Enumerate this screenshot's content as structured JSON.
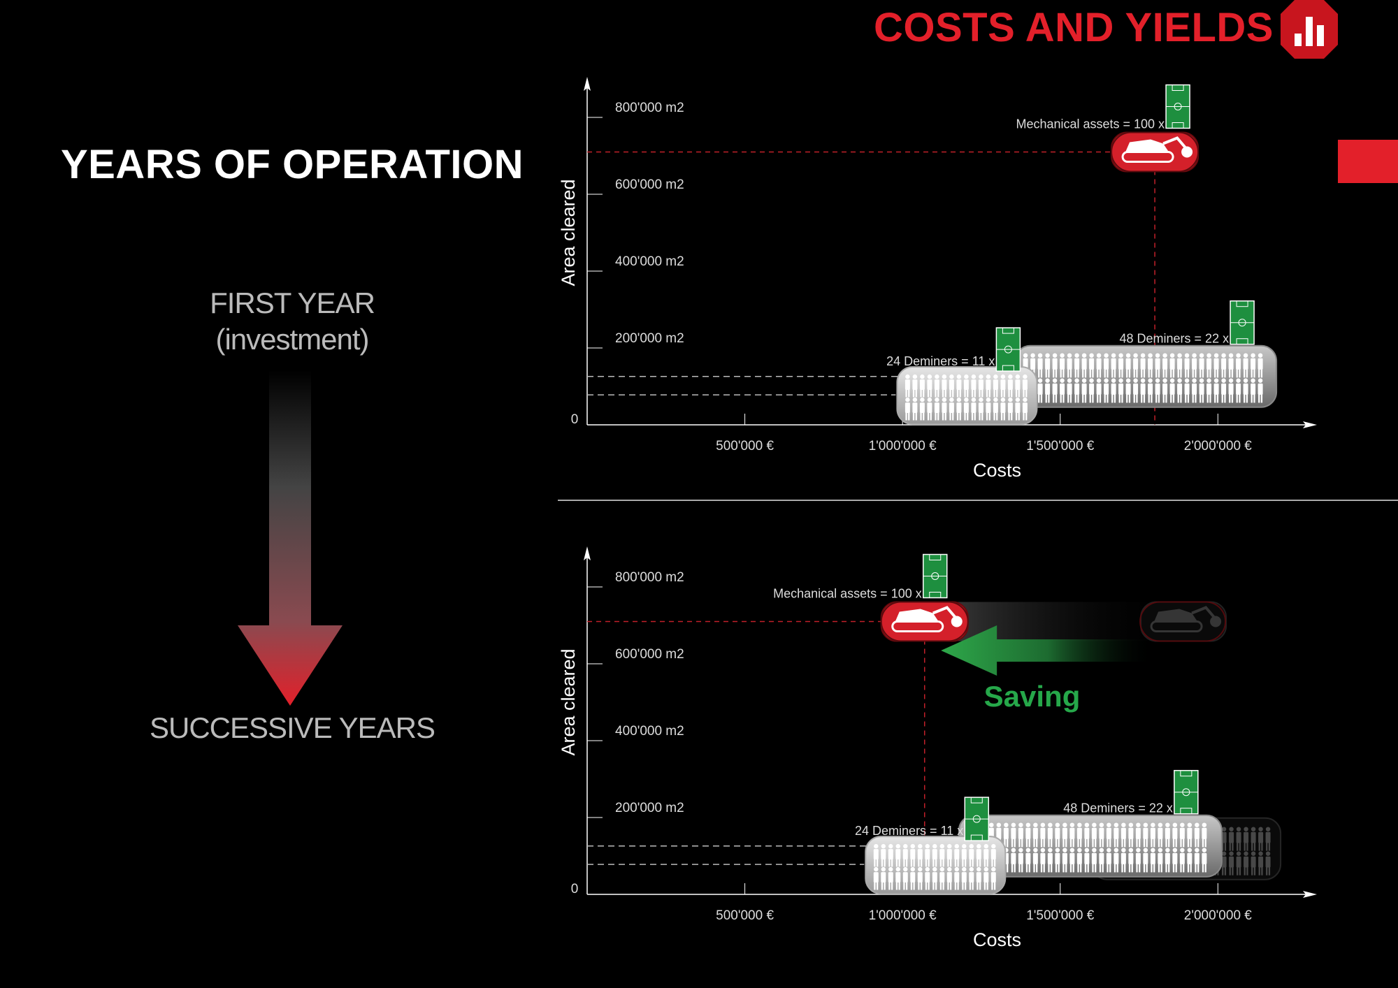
{
  "header": {
    "title": "COSTS AND YIELDS",
    "icon": "bar-chart-icon",
    "accent_color": "#e3202a"
  },
  "left_panel": {
    "title": "YEARS OF OPERATION",
    "first_year_line1": "FIRST YEAR",
    "first_year_line2": "(investment)",
    "successive_years": "SUCCESSIVE YEARS",
    "arrow_icon": "gradient-down-arrow-icon"
  },
  "saving_label": "Saving",
  "chart_data": [
    {
      "type": "scatter",
      "panel": "first-year",
      "xlabel": "Costs",
      "ylabel": "Area cleared",
      "x_ticks": [
        "500'000 €",
        "1'000'000 €",
        "1'500'000 €",
        "2'000'000 €"
      ],
      "x_tick_values": [
        500000,
        1000000,
        1500000,
        2000000
      ],
      "y_ticks": [
        "0",
        "200'000 m2",
        "400'000 m2",
        "600'000 m2",
        "800'000 m2"
      ],
      "y_tick_values": [
        0,
        200000,
        400000,
        600000,
        800000
      ],
      "xlim": [
        0,
        2150000
      ],
      "ylim": [
        0,
        840000
      ],
      "grid": false,
      "items": [
        {
          "label": "Mechanical assets =",
          "fields": "100 x",
          "cost": 1800000,
          "area": 710000,
          "kind": "machine",
          "icon": "demining-machine-icon"
        },
        {
          "label": "24 Deminers =",
          "fields": "11 x",
          "cost": 1200000,
          "area": 78000,
          "kind": "deminers",
          "icon": "deminers-group-icon"
        },
        {
          "label": "48 Deminers =",
          "fields": "22 x",
          "cost": 1800000,
          "area": 126000,
          "kind": "deminers",
          "icon": "deminers-group-icon"
        }
      ]
    },
    {
      "type": "scatter",
      "panel": "successive-years",
      "xlabel": "Costs",
      "ylabel": "Area cleared",
      "x_ticks": [
        "500'000 €",
        "1'000'000 €",
        "1'500'000 €",
        "2'000'000 €"
      ],
      "x_tick_values": [
        500000,
        1000000,
        1500000,
        2000000
      ],
      "y_ticks": [
        "0",
        "200'000 m2",
        "400'000 m2",
        "600'000 m2",
        "800'000 m2"
      ],
      "y_tick_values": [
        0,
        200000,
        400000,
        600000,
        800000
      ],
      "xlim": [
        0,
        2150000
      ],
      "ylim": [
        0,
        840000
      ],
      "grid": false,
      "items": [
        {
          "label": "Mechanical assets =",
          "fields": "100 x",
          "cost": 1070000,
          "area": 710000,
          "kind": "machine",
          "icon": "demining-machine-icon",
          "previous_cost": 1800000
        },
        {
          "label": "24 Deminers =",
          "fields": "11 x",
          "cost": 1100000,
          "area": 78000,
          "kind": "deminers",
          "icon": "deminers-group-icon",
          "previous_cost": 1200000
        },
        {
          "label": "48 Deminers =",
          "fields": "22 x",
          "cost": 1600000,
          "area": 126000,
          "kind": "deminers",
          "icon": "deminers-group-icon",
          "previous_cost": 1800000
        }
      ]
    }
  ]
}
